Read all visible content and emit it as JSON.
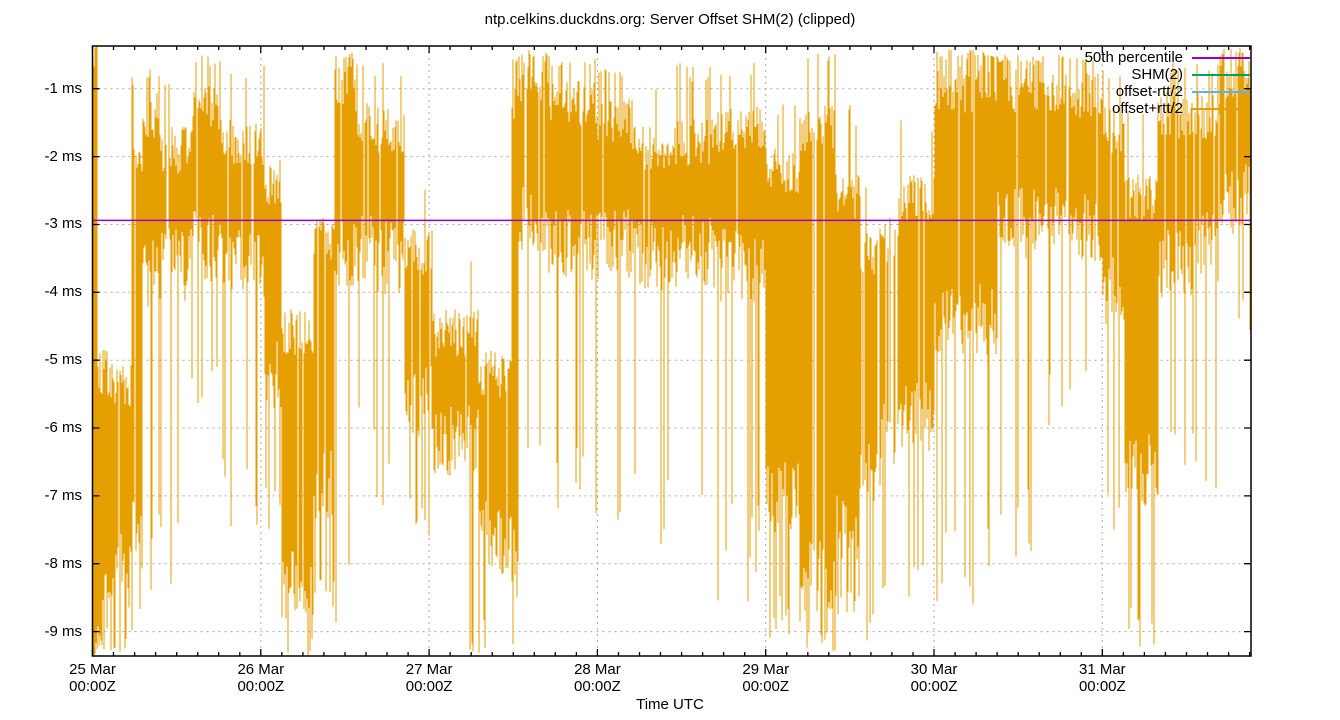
{
  "chart_data": {
    "type": "line",
    "subtype": "vertical-error-bar time series (gnuplot style)",
    "title": "ntp.celkins.duckdns.org: Server Offset SHM(2) (clipped)",
    "xlabel": "Time UTC",
    "ylabel": "",
    "y_unit": "ms",
    "ylim": [
      -9.36,
      -0.37
    ],
    "x_range_hours": [
      0,
      165.2
    ],
    "x_epoch_label": "25 Mar 00:00Z",
    "grid": true,
    "legend_position": "top-right inside plot, no box",
    "colors": {
      "background": "#ffffff",
      "border": "#000000",
      "grid": "#a8a8a8",
      "data_bars": "#E69F00",
      "percentile_line": "#9400D3",
      "text": "#000000"
    },
    "series": [
      {
        "name": "50th percentile",
        "color": "#9400D3",
        "style": "hline",
        "value_ms": -2.94
      },
      {
        "name": "SHM(2)",
        "color": "#009E73",
        "style": "line",
        "note": "obscured by offset+rtt/2 bars"
      },
      {
        "name": "offset-rtt/2",
        "color": "#56B4E9",
        "style": "line",
        "note": "obscured by offset+rtt/2 bars"
      },
      {
        "name": "offset+rtt/2",
        "color": "#E69F00",
        "style": "errorbars"
      }
    ],
    "y_ticks": [
      {
        "value": -1,
        "label": "-1 ms"
      },
      {
        "value": -2,
        "label": "-2 ms"
      },
      {
        "value": -3,
        "label": "-3 ms"
      },
      {
        "value": -4,
        "label": "-4 ms"
      },
      {
        "value": -5,
        "label": "-5 ms"
      },
      {
        "value": -6,
        "label": "-6 ms"
      },
      {
        "value": -7,
        "label": "-7 ms"
      },
      {
        "value": -8,
        "label": "-8 ms"
      },
      {
        "value": -9,
        "label": "-9 ms"
      }
    ],
    "x_ticks": [
      {
        "hour": 0,
        "line1": "25 Mar",
        "line2": "00:00Z"
      },
      {
        "hour": 24,
        "line1": "26 Mar",
        "line2": "00:00Z"
      },
      {
        "hour": 48,
        "line1": "27 Mar",
        "line2": "00:00Z"
      },
      {
        "hour": 72,
        "line1": "28 Mar",
        "line2": "00:00Z"
      },
      {
        "hour": 96,
        "line1": "29 Mar",
        "line2": "00:00Z"
      },
      {
        "hour": 120,
        "line1": "30 Mar",
        "line2": "00:00Z"
      },
      {
        "hour": 144,
        "line1": "31 Mar",
        "line2": "00:00Z"
      }
    ],
    "x_minor_tick_hours": 3,
    "render_seed": 42,
    "envelope_segments_note": "Per-interval envelope of the orange offset+rtt/2 bars, hours after 25 Mar 00:00Z; core=[low,high] ms band holding most bars, ext=[low,high] ms extremes reached by spikes, d=column density 0..1, sp=probability of downward spike, tp=probability of reaching upward extreme",
    "envelope_segments": [
      {
        "h0": 0,
        "h1": 0.65,
        "core": [
          -9.2,
          -0.5
        ],
        "ext": [
          -9.36,
          -0.37
        ],
        "d": 1,
        "sp": 0.5,
        "tp": 0.6
      },
      {
        "h0": 0.65,
        "h1": 2.2,
        "core": [
          -8.6,
          -5.2
        ],
        "ext": [
          -9.36,
          -2.6
        ],
        "d": 0.96,
        "sp": 0.3,
        "tp": 0.05
      },
      {
        "h0": 2.2,
        "h1": 5.5,
        "core": [
          -8.1,
          -5.4
        ],
        "ext": [
          -9.36,
          -1.0
        ],
        "d": 0.95,
        "sp": 0.25,
        "tp": 0.03
      },
      {
        "h0": 5.5,
        "h1": 7.2,
        "core": [
          -7.6,
          -2.2
        ],
        "ext": [
          -9.1,
          -0.8
        ],
        "d": 0.92,
        "sp": 0.3,
        "tp": 0.15
      },
      {
        "h0": 7.2,
        "h1": 9.5,
        "core": [
          -3.7,
          -1.4
        ],
        "ext": [
          -8.6,
          -0.7
        ],
        "d": 0.95,
        "sp": 0.18,
        "tp": 0.15
      },
      {
        "h0": 9.5,
        "h1": 14,
        "core": [
          -3.6,
          -1.9
        ],
        "ext": [
          -8.5,
          -0.8
        ],
        "d": 0.95,
        "sp": 0.1,
        "tp": 0.1
      },
      {
        "h0": 14,
        "h1": 18.3,
        "core": [
          -3.3,
          -1.3
        ],
        "ext": [
          -5.8,
          -0.5
        ],
        "d": 0.95,
        "sp": 0.15,
        "tp": 0.3
      },
      {
        "h0": 18.3,
        "h1": 24.5,
        "core": [
          -3.6,
          -1.8
        ],
        "ext": [
          -7.6,
          -0.6
        ],
        "d": 0.95,
        "sp": 0.12,
        "tp": 0.12
      },
      {
        "h0": 24.5,
        "h1": 27,
        "core": [
          -5.2,
          -2.4
        ],
        "ext": [
          -7.5,
          -1.2
        ],
        "d": 0.93,
        "sp": 0.2,
        "tp": 0.06
      },
      {
        "h0": 27,
        "h1": 31.5,
        "core": [
          -8.3,
          -4.6
        ],
        "ext": [
          -9.36,
          -3.2
        ],
        "d": 0.96,
        "sp": 0.25,
        "tp": 0.03
      },
      {
        "h0": 31.5,
        "h1": 34.5,
        "core": [
          -6.8,
          -3.2
        ],
        "ext": [
          -8.8,
          -2.0
        ],
        "d": 0.92,
        "sp": 0.2,
        "tp": 0.05
      },
      {
        "h0": 34.5,
        "h1": 37.5,
        "core": [
          -3.4,
          -0.9
        ],
        "ext": [
          -9.36,
          -0.45
        ],
        "d": 0.95,
        "sp": 0.12,
        "tp": 0.4
      },
      {
        "h0": 37.5,
        "h1": 40.5,
        "core": [
          -3.4,
          -1.5
        ],
        "ext": [
          -6.6,
          -0.6
        ],
        "d": 0.95,
        "sp": 0.12,
        "tp": 0.15
      },
      {
        "h0": 40.5,
        "h1": 44.5,
        "core": [
          -3.5,
          -1.6
        ],
        "ext": [
          -7.3,
          -0.6
        ],
        "d": 0.95,
        "sp": 0.1,
        "tp": 0.12
      },
      {
        "h0": 44.5,
        "h1": 48.5,
        "core": [
          -5.6,
          -3.4
        ],
        "ext": [
          -7.6,
          -2.4
        ],
        "d": 0.93,
        "sp": 0.12,
        "tp": 0.04
      },
      {
        "h0": 48.5,
        "h1": 55,
        "core": [
          -6.2,
          -4.6
        ],
        "ext": [
          -9.36,
          -3.4
        ],
        "d": 0.94,
        "sp": 0.15,
        "tp": 0.04
      },
      {
        "h0": 55,
        "h1": 59.8,
        "core": [
          -7.6,
          -5.2
        ],
        "ext": [
          -9.36,
          -4.2
        ],
        "d": 0.95,
        "sp": 0.2,
        "tp": 0.03
      },
      {
        "h0": 59.8,
        "h1": 60.8,
        "core": [
          -8.0,
          -1.2
        ],
        "ext": [
          -9.36,
          -0.5
        ],
        "d": 0.95,
        "sp": 0.3,
        "tp": 0.4
      },
      {
        "h0": 60.8,
        "h1": 65,
        "core": [
          -2.9,
          -0.85
        ],
        "ext": [
          -7.3,
          -0.42
        ],
        "d": 0.96,
        "sp": 0.1,
        "tp": 0.4
      },
      {
        "h0": 65,
        "h1": 72,
        "core": [
          -3.3,
          -1.2
        ],
        "ext": [
          -7.4,
          -0.5
        ],
        "d": 0.95,
        "sp": 0.1,
        "tp": 0.2
      },
      {
        "h0": 72,
        "h1": 77,
        "core": [
          -3.3,
          -1.5
        ],
        "ext": [
          -8.3,
          -0.7
        ],
        "d": 0.95,
        "sp": 0.1,
        "tp": 0.12
      },
      {
        "h0": 77,
        "h1": 82,
        "core": [
          -3.5,
          -1.9
        ],
        "ext": [
          -7.9,
          -0.8
        ],
        "d": 0.95,
        "sp": 0.1,
        "tp": 0.08
      },
      {
        "h0": 82,
        "h1": 89,
        "core": [
          -3.4,
          -1.8
        ],
        "ext": [
          -7.0,
          -0.6
        ],
        "d": 0.95,
        "sp": 0.08,
        "tp": 0.12
      },
      {
        "h0": 89,
        "h1": 96,
        "core": [
          -3.6,
          -1.6
        ],
        "ext": [
          -8.6,
          -0.6
        ],
        "d": 0.95,
        "sp": 0.12,
        "tp": 0.12
      },
      {
        "h0": 96,
        "h1": 101,
        "core": [
          -7.0,
          -2.2
        ],
        "ext": [
          -9.1,
          -1.2
        ],
        "d": 0.97,
        "sp": 0.2,
        "tp": 0.08
      },
      {
        "h0": 101,
        "h1": 106,
        "core": [
          -8.2,
          -1.6
        ],
        "ext": [
          -9.36,
          -0.45
        ],
        "d": 0.97,
        "sp": 0.25,
        "tp": 0.25
      },
      {
        "h0": 106,
        "h1": 109.5,
        "core": [
          -7.4,
          -2.6
        ],
        "ext": [
          -8.8,
          -1.2
        ],
        "d": 0.95,
        "sp": 0.2,
        "tp": 0.1
      },
      {
        "h0": 109.5,
        "h1": 112.5,
        "core": [
          -6.6,
          -3.4
        ],
        "ext": [
          -9.36,
          -2.2
        ],
        "d": 0.85,
        "sp": 0.25,
        "tp": 0.05
      },
      {
        "h0": 112.5,
        "h1": 115,
        "core": [
          -6.0,
          -3.2
        ],
        "ext": [
          -8.8,
          -0.6
        ],
        "d": 0.6,
        "sp": 0.15,
        "tp": 0.1
      },
      {
        "h0": 115,
        "h1": 120,
        "core": [
          -5.8,
          -2.6
        ],
        "ext": [
          -8.8,
          -1.4
        ],
        "d": 0.9,
        "sp": 0.15,
        "tp": 0.06
      },
      {
        "h0": 120,
        "h1": 129,
        "core": [
          -4.4,
          -1.0
        ],
        "ext": [
          -8.8,
          -0.42
        ],
        "d": 0.97,
        "sp": 0.15,
        "tp": 0.4
      },
      {
        "h0": 129,
        "h1": 134,
        "core": [
          -3.0,
          -1.0
        ],
        "ext": [
          -8.0,
          -0.5
        ],
        "d": 0.96,
        "sp": 0.1,
        "tp": 0.3
      },
      {
        "h0": 134,
        "h1": 144,
        "core": [
          -3.0,
          -1.1
        ],
        "ext": [
          -6.0,
          -0.5
        ],
        "d": 0.96,
        "sp": 0.08,
        "tp": 0.25
      },
      {
        "h0": 144,
        "h1": 147.2,
        "core": [
          -4.0,
          -1.6
        ],
        "ext": [
          -7.6,
          -0.7
        ],
        "d": 0.95,
        "sp": 0.15,
        "tp": 0.15
      },
      {
        "h0": 147.2,
        "h1": 152,
        "core": [
          -6.6,
          -2.6
        ],
        "ext": [
          -9.36,
          -1.2
        ],
        "d": 0.93,
        "sp": 0.2,
        "tp": 0.08
      },
      {
        "h0": 152,
        "h1": 157,
        "core": [
          -3.6,
          -1.4
        ],
        "ext": [
          -6.6,
          -0.6
        ],
        "d": 0.95,
        "sp": 0.12,
        "tp": 0.15
      },
      {
        "h0": 157,
        "h1": 160.5,
        "core": [
          -3.3,
          -1.4
        ],
        "ext": [
          -7.2,
          -0.6
        ],
        "d": 0.95,
        "sp": 0.12,
        "tp": 0.12
      },
      {
        "h0": 160.5,
        "h1": 165.2,
        "core": [
          -2.6,
          -0.8
        ],
        "ext": [
          -4.7,
          -0.4
        ],
        "d": 0.97,
        "sp": 0.15,
        "tp": 0.35
      }
    ]
  }
}
